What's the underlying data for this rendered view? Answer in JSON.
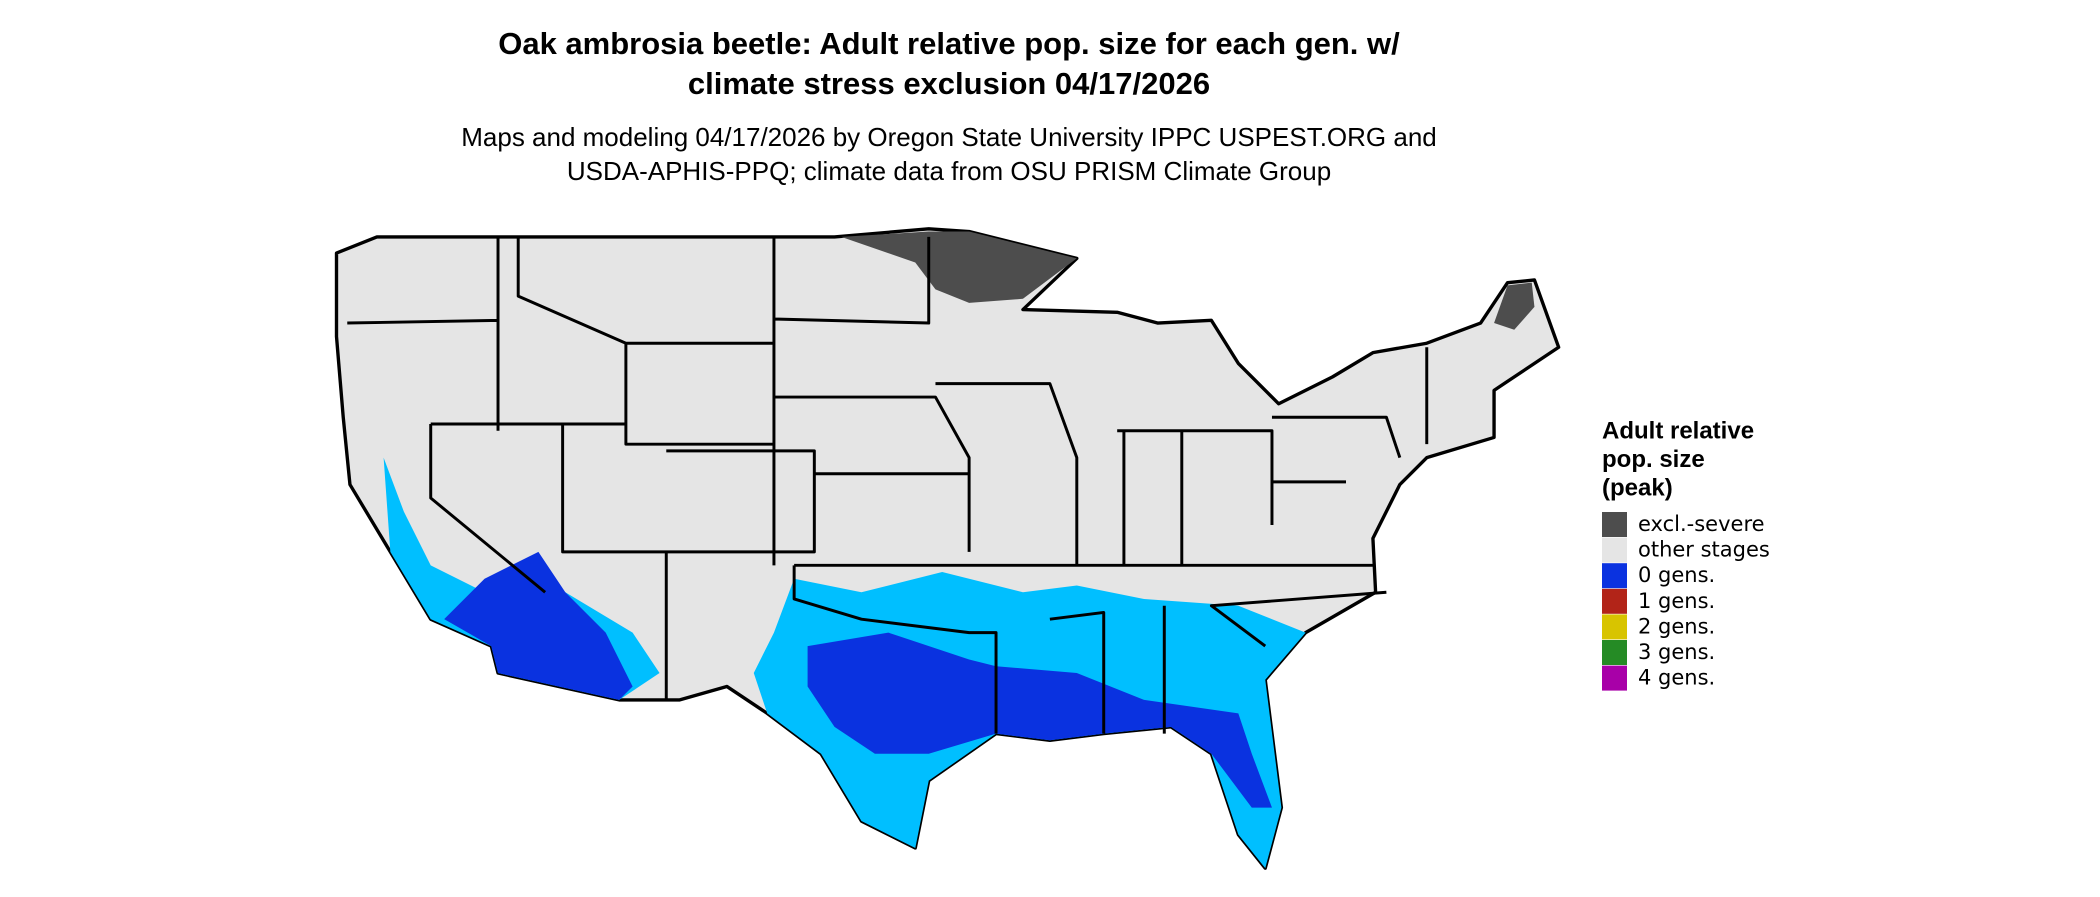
{
  "header": {
    "title_lines": [
      "Oak ambrosia beetle: Adult relative pop. size for each gen. w/",
      "climate stress exclusion 04/17/2026"
    ],
    "subtitle_lines": [
      "Maps and modeling 04/17/2026 by Oregon State University IPPC USPEST.ORG and",
      "USDA-APHIS-PPQ; climate data from OSU PRISM Climate Group"
    ]
  },
  "legend": {
    "title_lines": [
      "Adult relative",
      "pop. size",
      "(peak)"
    ],
    "items": [
      {
        "label": "excl.-severe",
        "color": "#4d4d4d"
      },
      {
        "label": "other stages",
        "color": "#e5e5e5"
      },
      {
        "label": "0 gens.",
        "color": "#0a32e0"
      },
      {
        "label": "1 gens.",
        "color": "#b22418"
      },
      {
        "label": "2 gens.",
        "color": "#d8c400"
      },
      {
        "label": "3 gens.",
        "color": "#258b25"
      },
      {
        "label": "4 gens.",
        "color": "#a800a8"
      }
    ]
  }
}
